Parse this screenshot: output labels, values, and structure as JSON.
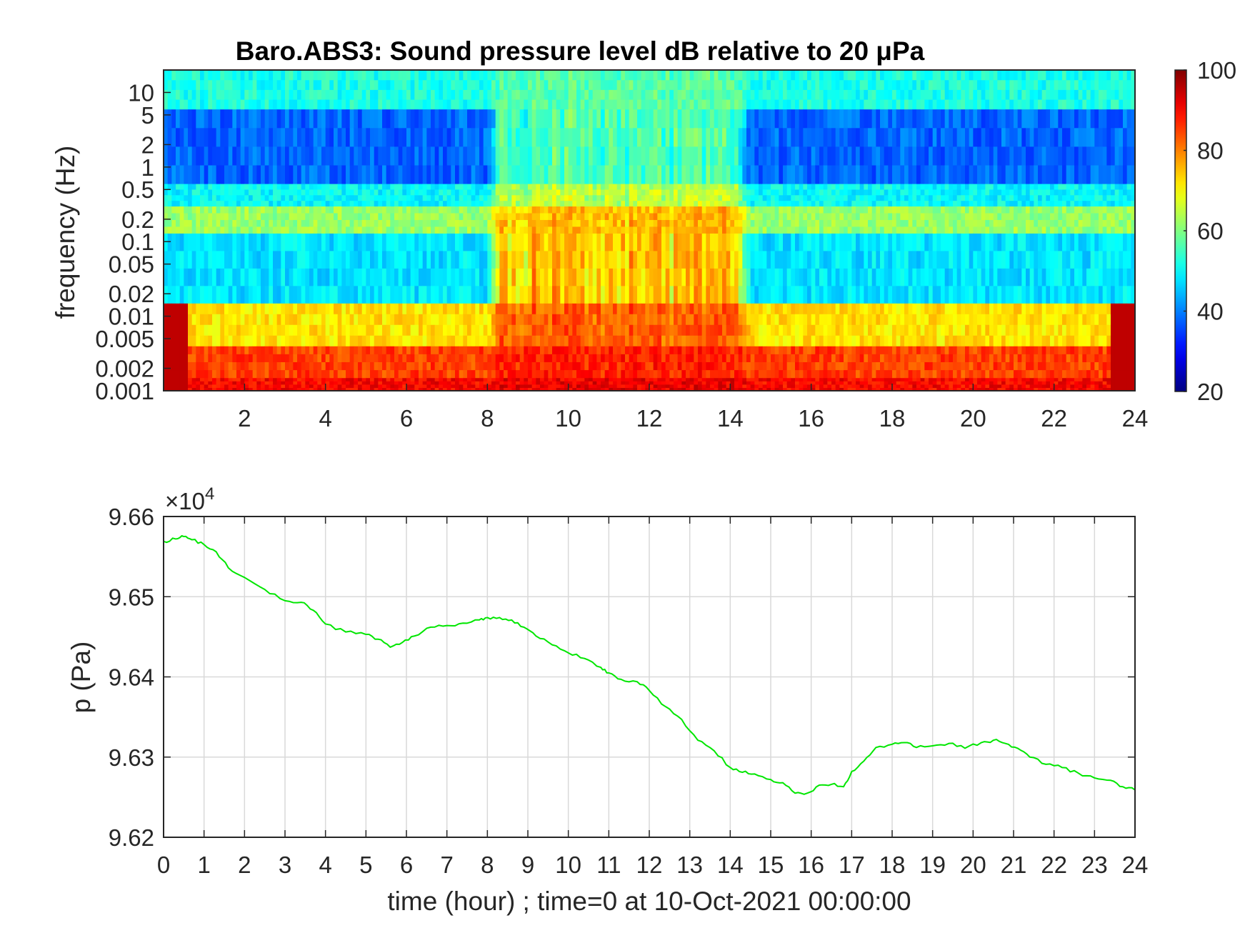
{
  "chart_data": [
    {
      "type": "heatmap",
      "title": "Baro.ABS3: Sound pressure level dB relative to 20 μPa",
      "ylabel": "frequency (Hz)",
      "xlabel": "",
      "x_ticks": [
        "2",
        "4",
        "6",
        "8",
        "10",
        "12",
        "14",
        "16",
        "18",
        "20",
        "22",
        "24"
      ],
      "x_tick_values": [
        2,
        4,
        6,
        8,
        10,
        12,
        14,
        16,
        18,
        20,
        22,
        24
      ],
      "xlim": [
        0,
        24
      ],
      "y_scale": "log",
      "ylim": [
        0.001,
        20
      ],
      "y_ticks": [
        "0.001",
        "0.002",
        "0.005",
        "0.01",
        "0.02",
        "0.05",
        "0.1",
        "0.2",
        "0.5",
        "1",
        "2",
        "5",
        "10"
      ],
      "y_tick_values": [
        0.001,
        0.002,
        0.005,
        0.01,
        0.02,
        0.05,
        0.1,
        0.2,
        0.5,
        1,
        2,
        5,
        10
      ],
      "colormap": "jet",
      "colorbar": {
        "range": [
          20,
          100
        ],
        "ticks": [
          "20",
          "40",
          "60",
          "80",
          "100"
        ],
        "tick_values": [
          20,
          40,
          60,
          80,
          100
        ]
      },
      "bands_db": [
        {
          "f_range": [
            0.001,
            0.0015
          ],
          "db_quiet": 90,
          "db_active": 92
        },
        {
          "f_range": [
            0.0015,
            0.004
          ],
          "db_quiet": 85,
          "db_active": 88
        },
        {
          "f_range": [
            0.004,
            0.015
          ],
          "db_quiet": 72,
          "db_active": 85
        },
        {
          "f_range": [
            0.015,
            0.13
          ],
          "db_quiet": 48,
          "db_active": 80
        },
        {
          "f_range": [
            0.13,
            0.3
          ],
          "db_quiet": 62,
          "db_active": 78
        },
        {
          "f_range": [
            0.3,
            0.6
          ],
          "db_quiet": 50,
          "db_active": 68
        },
        {
          "f_range": [
            0.6,
            6
          ],
          "db_quiet": 38,
          "db_active": 60
        },
        {
          "f_range": [
            6,
            20
          ],
          "db_quiet": 52,
          "db_active": 58
        }
      ],
      "active_period_hours": [
        8,
        14.5
      ]
    },
    {
      "type": "line",
      "xlabel": "time (hour) ; time=0 at 10-Oct-2021 00:00:00",
      "ylabel": "p (Pa)",
      "y_exponent_label": "×10",
      "y_exponent": "4",
      "xlim": [
        0,
        24
      ],
      "ylim": [
        9.62,
        9.66
      ],
      "x_ticks": [
        "0",
        "1",
        "2",
        "3",
        "4",
        "5",
        "6",
        "7",
        "8",
        "9",
        "10",
        "11",
        "12",
        "13",
        "14",
        "15",
        "16",
        "17",
        "18",
        "19",
        "20",
        "21",
        "22",
        "23",
        "24"
      ],
      "x_tick_values": [
        0,
        1,
        2,
        3,
        4,
        5,
        6,
        7,
        8,
        9,
        10,
        11,
        12,
        13,
        14,
        15,
        16,
        17,
        18,
        19,
        20,
        21,
        22,
        23,
        24
      ],
      "y_ticks": [
        "9.62",
        "9.63",
        "9.64",
        "9.65",
        "9.66"
      ],
      "y_tick_values": [
        9.62,
        9.63,
        9.64,
        9.65,
        9.66
      ],
      "grid": true,
      "line_color": "#00e600",
      "series": [
        {
          "x": [
            0,
            0.3,
            0.5,
            0.7,
            1.0,
            1.3,
            1.6,
            2.0,
            2.5,
            3.0,
            3.4,
            3.7,
            4.0,
            4.5,
            5.0,
            5.3,
            5.6,
            5.9,
            6.2,
            6.6,
            7.0,
            7.4,
            7.8,
            8.0,
            8.3,
            8.6,
            8.9,
            9.2,
            9.6,
            10.0,
            10.4,
            10.8,
            11.0,
            11.3,
            11.7,
            12.0,
            12.4,
            12.8,
            13.2,
            13.6,
            14.0,
            14.3,
            14.6,
            15.0,
            15.3,
            15.6,
            15.9,
            16.2,
            16.5,
            16.8,
            17.0,
            17.3,
            17.6,
            18.0,
            18.3,
            18.6,
            19.0,
            19.4,
            19.8,
            20.2,
            20.5,
            20.8,
            21.1,
            21.4,
            21.8,
            22.2,
            22.6,
            23.0,
            23.4,
            23.7,
            24.0
          ],
          "y": [
            9.6569,
            9.6572,
            9.6575,
            9.6571,
            9.6565,
            9.6556,
            9.6536,
            9.6524,
            9.6509,
            9.6495,
            9.6493,
            9.6483,
            9.6466,
            9.6456,
            9.6453,
            9.6447,
            9.6437,
            9.6443,
            9.6451,
            9.6462,
            9.6464,
            9.6467,
            9.6471,
            9.6474,
            9.6474,
            9.6471,
            9.6462,
            9.6451,
            9.644,
            9.643,
            9.6423,
            9.6412,
            9.6405,
            9.6397,
            9.6394,
            9.6383,
            9.6363,
            9.6347,
            9.6321,
            9.6308,
            9.6287,
            9.6281,
            9.6279,
            9.6272,
            9.6268,
            9.6255,
            9.6255,
            9.6265,
            9.6266,
            9.6263,
            9.6282,
            9.6295,
            9.6312,
            9.6316,
            9.6318,
            9.6312,
            9.6314,
            9.6317,
            9.6311,
            9.6318,
            9.6321,
            9.6317,
            9.6311,
            9.63,
            9.6291,
            9.6287,
            9.628,
            9.6274,
            9.6271,
            9.6263,
            9.6259
          ]
        }
      ]
    }
  ]
}
